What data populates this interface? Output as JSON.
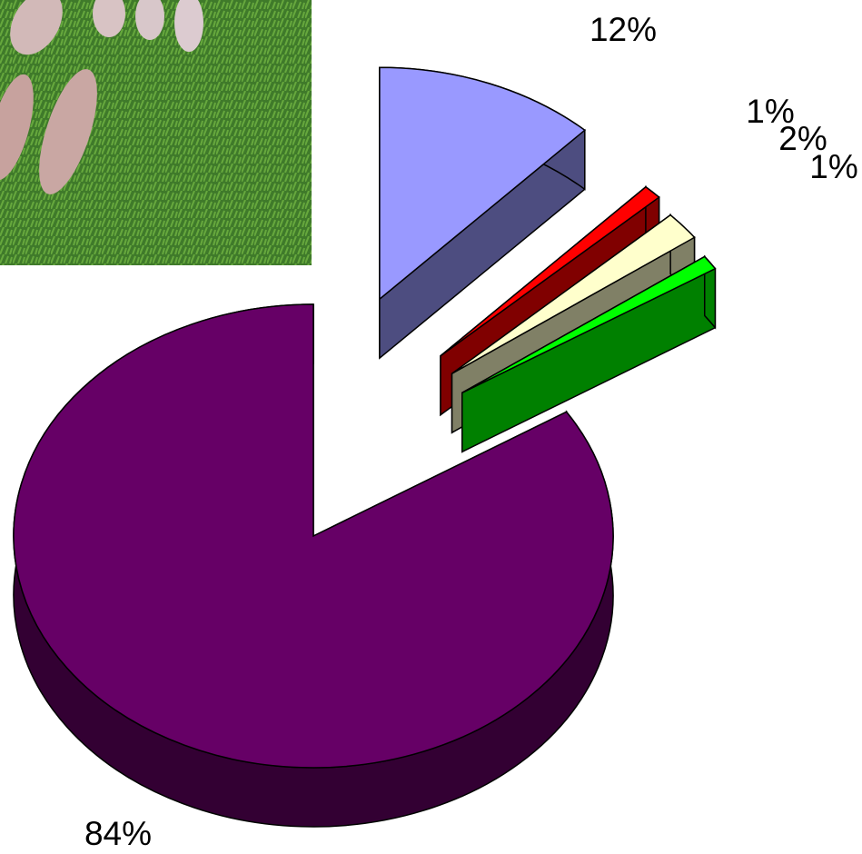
{
  "chart_data": {
    "type": "pie3d",
    "values": [
      12,
      1,
      2,
      1,
      84
    ],
    "value_labels": [
      "12%",
      "1%",
      "2%",
      "1%",
      "84%"
    ],
    "colors": [
      "#9999ff",
      "#ff0000",
      "#ffffcc",
      "#00ff00",
      "#660066"
    ]
  }
}
